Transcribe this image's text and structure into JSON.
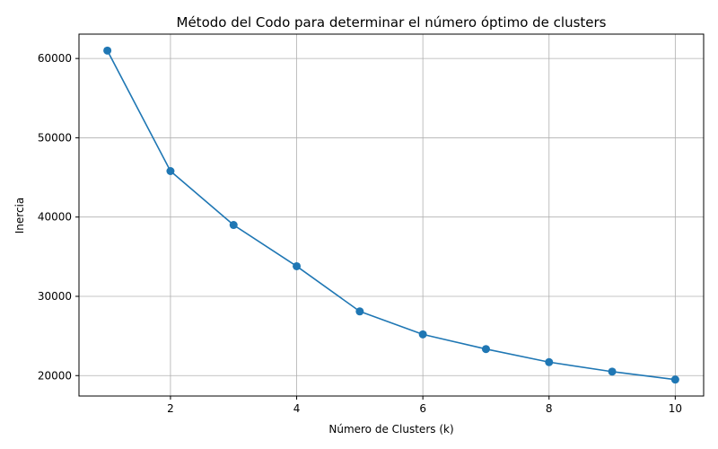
{
  "chart_data": {
    "type": "line",
    "title": "Método del Codo para determinar el número óptimo de clusters",
    "xlabel": "Número de Clusters (k)",
    "ylabel": "Inercia",
    "x": [
      1,
      2,
      3,
      4,
      5,
      6,
      7,
      8,
      9,
      10
    ],
    "series": [
      {
        "values": [
          61000,
          45800,
          39000,
          33800,
          28100,
          25200,
          23350,
          21700,
          20500,
          19500
        ],
        "color": "#1f77b4",
        "marker": "circle"
      }
    ],
    "xlim": [
      0.55,
      10.45
    ],
    "ylim": [
      17425,
      63075
    ],
    "xticks": [
      2,
      4,
      6,
      8,
      10
    ],
    "yticks": [
      20000,
      30000,
      40000,
      50000,
      60000
    ],
    "grid": true,
    "colors": {
      "grid": "#b0b0b0",
      "axis": "#000000",
      "line": "#1f77b4"
    }
  }
}
